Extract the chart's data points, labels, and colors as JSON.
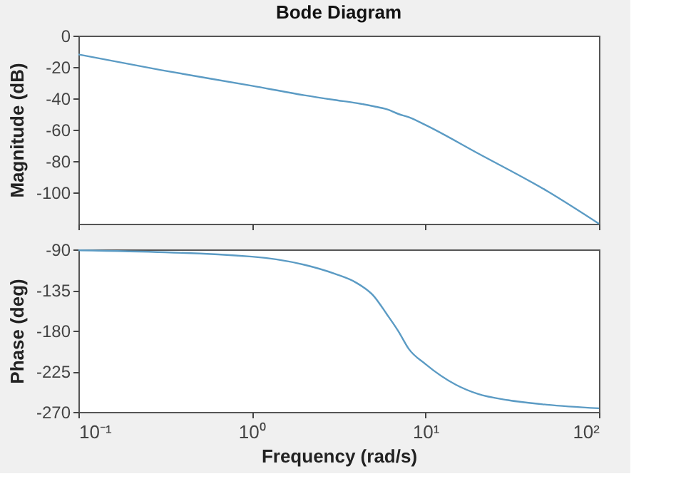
{
  "chart_data": [
    {
      "type": "line",
      "title": "Bode Diagram",
      "ylabel": "Magnitude (dB)",
      "log": "x",
      "grid": false,
      "tick_labels": "y",
      "x": [
        0.1,
        0.3,
        1,
        2,
        3,
        4,
        5,
        6,
        7,
        8,
        10,
        20,
        50,
        100
      ],
      "series": [
        {
          "color": "#5b9bc4",
          "values": [
            -12,
            -22,
            -32,
            -38,
            -41,
            -43,
            -45,
            -47,
            -50,
            -52,
            -57,
            -75,
            -99,
            -120
          ]
        }
      ],
      "xlim": [
        0.1,
        100
      ],
      "xticks": [
        {
          "value": 0.1,
          "label": null
        },
        {
          "value": 1,
          "label": null
        },
        {
          "value": 10,
          "label": null
        },
        {
          "value": 100,
          "label": null
        }
      ],
      "ylim": [
        -120,
        0
      ],
      "yticks": [
        0,
        -20,
        -40,
        -60,
        -80,
        -100
      ]
    },
    {
      "type": "line",
      "xlabel": "Frequency  (rad/s)",
      "ylabel": "Phase (deg)",
      "log": "x",
      "grid": false,
      "x": [
        0.1,
        1,
        2,
        3,
        4,
        5,
        6,
        7,
        8,
        10,
        15,
        20,
        30,
        50,
        100
      ],
      "series": [
        {
          "color": "#5b9bc4",
          "values": [
            -91,
            -98,
            -107,
            -117,
            -127,
            -141,
            -162,
            -181,
            -200,
            -217,
            -240,
            -250,
            -257,
            -262,
            -266
          ]
        }
      ],
      "xlim": [
        0.1,
        100
      ],
      "xticks": [
        {
          "value": 0.1,
          "label": "10⁻¹"
        },
        {
          "value": 1,
          "label": "10⁰"
        },
        {
          "value": 10,
          "label": "10¹"
        },
        {
          "value": 100,
          "label": "10²"
        }
      ],
      "ylim": [
        -270,
        -90
      ],
      "yticks": [
        -90,
        -135,
        -180,
        -225,
        -270
      ]
    }
  ]
}
